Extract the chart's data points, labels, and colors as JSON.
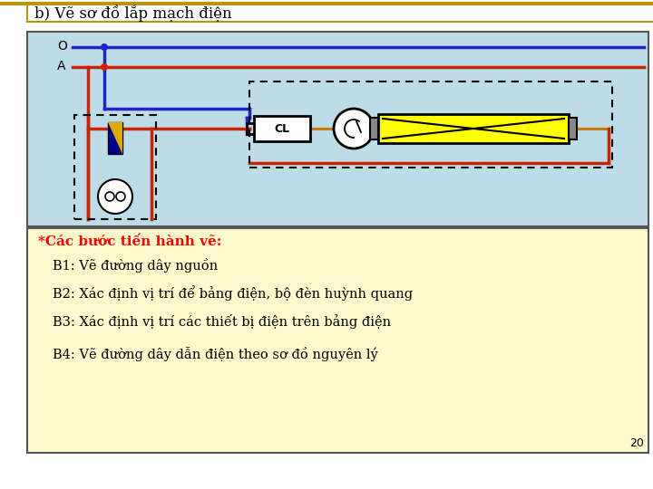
{
  "title": "b) Vẽ sơ đồ lắp mạch điện",
  "blue_wire": "#2222cc",
  "red_wire": "#cc2200",
  "orange_wire": "#cc7700",
  "black": "#000000",
  "label_O": "O",
  "label_A": "A",
  "steps_title": "*Các bước tiến hành vẽ:",
  "step1": "B1: Vẽ đường dây nguồn",
  "step2": "B2: Xác định vị trí để bảng điện, bộ đèn huỳnh quang",
  "step3": "B3: Xác định vị trí các thiết bị điện trên bảng điện",
  "step4": "B4: Vẽ đường dây dẫn điện theo sơ đồ nguyên lý",
  "page_num": "20",
  "top_panel_color": "#bcdde8",
  "bottom_panel_color": "#fffacd",
  "gold_color": "#b8960c",
  "border_color": "#555555"
}
